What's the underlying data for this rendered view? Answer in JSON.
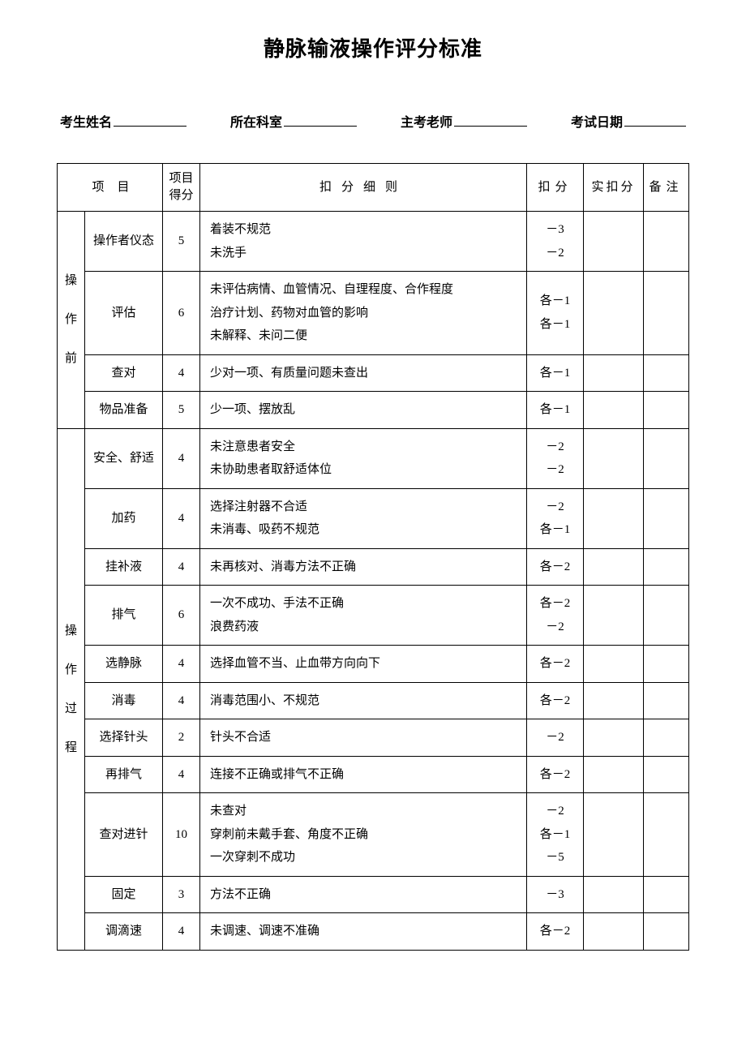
{
  "title": "静脉输液操作评分标准",
  "form": {
    "name_label": "考生姓名",
    "dept_label": "所在科室",
    "examiner_label": "主考老师",
    "date_label": "考试日期"
  },
  "headers": {
    "project": "项目",
    "project_score": "项目\n得分",
    "detail": "扣分细则",
    "deduct": "扣分",
    "actual": "实扣分",
    "note": "备注"
  },
  "sections": [
    {
      "category": "操\n作\n前",
      "rows": [
        {
          "item": "操作者仪态",
          "score": "5",
          "details": "着装不规范\n未洗手",
          "deduct": "－3\n－2"
        },
        {
          "item": "评估",
          "score": "6",
          "details": "未评估病情、血管情况、自理程度、合作程度\n治疗计划、药物对血管的影响\n未解释、未问二便",
          "deduct": "各－1\n各－1"
        },
        {
          "item": "查对",
          "score": "4",
          "details": "少对一项、有质量问题未查出",
          "deduct": "各－1"
        },
        {
          "item": "物品准备",
          "score": "5",
          "details": "少一项、摆放乱",
          "deduct": "各－1"
        }
      ]
    },
    {
      "category": "操\n作\n过\n程",
      "rows": [
        {
          "item": "安全、舒适",
          "score": "4",
          "details": "未注意患者安全\n未协助患者取舒适体位",
          "deduct": "－2\n－2"
        },
        {
          "item": "加药",
          "score": "4",
          "details": "选择注射器不合适\n未消毒、吸药不规范",
          "deduct": "－2\n各－1"
        },
        {
          "item": "挂补液",
          "score": "4",
          "details": "未再核对、消毒方法不正确",
          "deduct": "各－2"
        },
        {
          "item": "排气",
          "score": "6",
          "details": "一次不成功、手法不正确\n浪费药液",
          "deduct": "各－2\n－2"
        },
        {
          "item": "选静脉",
          "score": "4",
          "details": "选择血管不当、止血带方向向下",
          "deduct": "各－2"
        },
        {
          "item": "消毒",
          "score": "4",
          "details": "消毒范围小、不规范",
          "deduct": "各－2"
        },
        {
          "item": "选择针头",
          "score": "2",
          "details": "针头不合适",
          "deduct": "－2"
        },
        {
          "item": "再排气",
          "score": "4",
          "details": "连接不正确或排气不正确",
          "deduct": "各－2"
        },
        {
          "item": "查对进针",
          "score": "10",
          "details": "未查对\n穿刺前未戴手套、角度不正确\n一次穿刺不成功",
          "deduct": "－2\n各－1\n－5"
        },
        {
          "item": "固定",
          "score": "3",
          "details": "方法不正确",
          "deduct": "－3"
        },
        {
          "item": "调滴速",
          "score": "4",
          "details": "未调速、调速不准确",
          "deduct": "各－2"
        }
      ]
    }
  ]
}
